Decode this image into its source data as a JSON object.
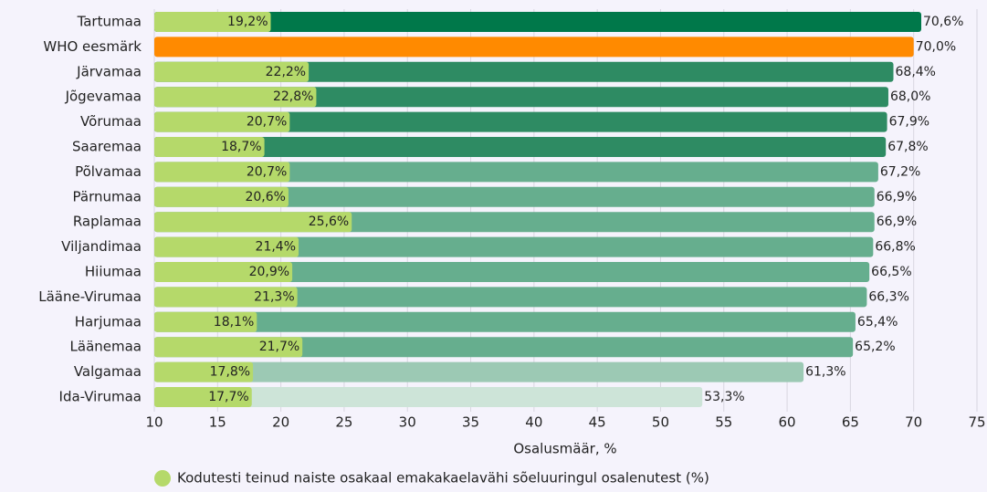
{
  "chart_data": {
    "type": "bar",
    "orientation": "horizontal",
    "categories": [
      "Tartumaa",
      "WHO eesmärk",
      "Järvamaa",
      "Jõgevamaa",
      "Võrumaa",
      "Saaremaa",
      "Põlvamaa",
      "Pärnumaa",
      "Raplamaa",
      "Viljandimaa",
      "Hiiumaa",
      "Lääne-Virumaa",
      "Harjumaa",
      "Läänemaa",
      "Valgamaa",
      "Ida-Virumaa"
    ],
    "series": [
      {
        "values": [
          70.6,
          70.0,
          68.4,
          68.0,
          67.9,
          67.8,
          67.2,
          66.9,
          66.9,
          66.8,
          66.5,
          66.3,
          65.4,
          65.2,
          61.3,
          53.3
        ],
        "value_labels": [
          "70,6%",
          "70,0%",
          "68,4%",
          "68,0%",
          "67,9%",
          "67,8%",
          "67,2%",
          "66,9%",
          "66,9%",
          "66,8%",
          "66,5%",
          "66,3%",
          "65,4%",
          "65,2%",
          "61,3%",
          "53,3%"
        ],
        "colors": [
          "#00784a",
          "#ff8a00",
          "#2e8b63",
          "#2e8b63",
          "#2e8b63",
          "#2e8b63",
          "#66ae8e",
          "#66ae8e",
          "#66ae8e",
          "#66ae8e",
          "#66ae8e",
          "#66ae8e",
          "#66ae8e",
          "#66ae8e",
          "#9cc9b4",
          "#cde4d8"
        ]
      },
      {
        "name": "Kodutesti teinud naiste osakaal emakakaelavähi sõeluuringul osalenutest (%)",
        "color": "#b5d96a",
        "values": [
          19.2,
          null,
          22.2,
          22.8,
          20.7,
          18.7,
          20.7,
          20.6,
          25.6,
          21.4,
          20.9,
          21.3,
          18.1,
          21.7,
          17.8,
          17.7
        ],
        "value_labels": [
          "19,2%",
          null,
          "22,2%",
          "22,8%",
          "20,7%",
          "18,7%",
          "20,7%",
          "20,6%",
          "25,6%",
          "21,4%",
          "20,9%",
          "21,3%",
          "18,1%",
          "21,7%",
          "17,8%",
          "17,7%"
        ]
      }
    ],
    "xlabel": "Osalusmäär, %",
    "xlim": [
      10,
      75
    ],
    "xticks": [
      10,
      15,
      20,
      25,
      30,
      35,
      40,
      45,
      50,
      55,
      60,
      65,
      70,
      75
    ],
    "grid": true
  }
}
